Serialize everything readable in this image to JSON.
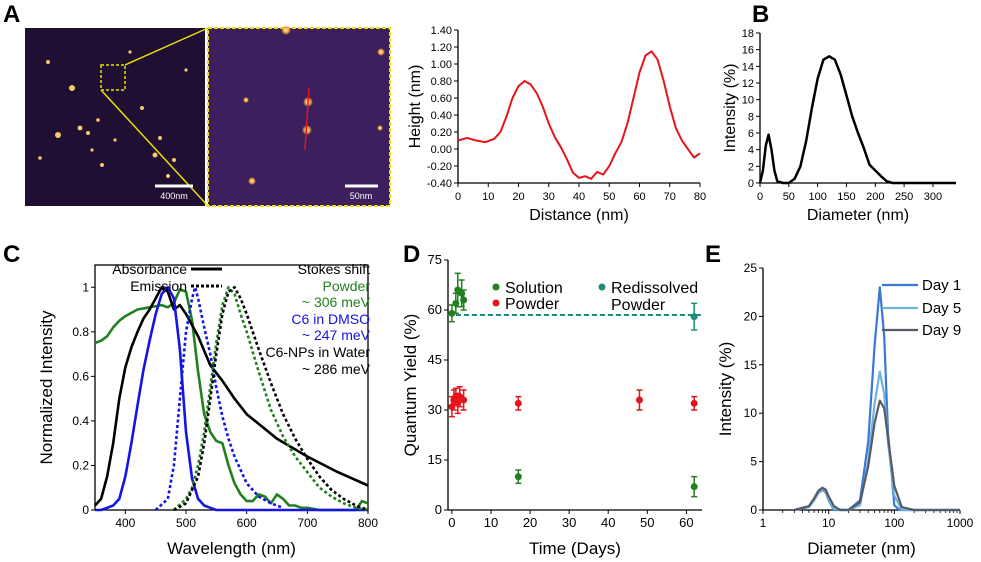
{
  "panels": {
    "A": {
      "letter": "A",
      "scale_bar_1": "400nm",
      "scale_bar_2": "50nm"
    },
    "B": {
      "letter": "B"
    },
    "C": {
      "letter": "C"
    },
    "D": {
      "letter": "D"
    },
    "E": {
      "letter": "E"
    }
  },
  "colors": {
    "red": "#e8141b",
    "black": "#000000",
    "green": "#22801f",
    "blue": "#1414e6",
    "teal": "#1e8c7a",
    "day1": "#3a78d8",
    "day5": "#6fb3d8",
    "day9": "#555a66",
    "spot": "#f7c96a",
    "afm_dark": "#1e0f33",
    "afm_zoom": "#3c1f5c",
    "highlight": "#e8e000"
  },
  "chart_data": [
    {
      "id": "A_profile",
      "type": "line",
      "title": "",
      "xlabel": "Distance (nm)",
      "ylabel": "Height (nm)",
      "xlim": [
        0,
        80
      ],
      "ylim": [
        -0.4,
        1.4
      ],
      "xticks": [
        0,
        10,
        20,
        30,
        40,
        50,
        60,
        70,
        80
      ],
      "yticks": [
        -0.4,
        -0.2,
        0.0,
        0.2,
        0.4,
        0.6,
        0.8,
        1.0,
        1.2,
        1.4
      ],
      "ytick_labels": [
        "-0.40",
        "-0.20",
        "0.00",
        "0.20",
        "0.40",
        "0.60",
        "0.80",
        "1.00",
        "1.20",
        "1.40"
      ],
      "series": [
        {
          "color": "red",
          "x": [
            0,
            3,
            6,
            9,
            12,
            14,
            16,
            18,
            20,
            22,
            24,
            26,
            28,
            30,
            32,
            34,
            36,
            38,
            40,
            42,
            44,
            46,
            48,
            50,
            52,
            54,
            56,
            58,
            60,
            62,
            64,
            66,
            68,
            70,
            72,
            74,
            76,
            78,
            80
          ],
          "y": [
            0.1,
            0.13,
            0.1,
            0.08,
            0.12,
            0.2,
            0.38,
            0.6,
            0.74,
            0.8,
            0.76,
            0.66,
            0.5,
            0.3,
            0.14,
            0.02,
            -0.12,
            -0.28,
            -0.34,
            -0.32,
            -0.35,
            -0.27,
            -0.3,
            -0.2,
            -0.05,
            0.08,
            0.3,
            0.6,
            0.9,
            1.1,
            1.15,
            1.05,
            0.8,
            0.5,
            0.25,
            0.1,
            0.0,
            -0.1,
            -0.05
          ]
        }
      ]
    },
    {
      "id": "B",
      "type": "line",
      "title": "",
      "xlabel": "Diameter (nm)",
      "ylabel": "Intensity (%)",
      "xlim": [
        0,
        340
      ],
      "ylim": [
        0,
        18
      ],
      "xticks": [
        0,
        50,
        100,
        150,
        200,
        250,
        300
      ],
      "yticks": [
        0,
        2,
        4,
        6,
        8,
        10,
        12,
        14,
        16,
        18
      ],
      "series": [
        {
          "color": "black",
          "x": [
            0,
            5,
            10,
            15,
            20,
            25,
            30,
            40,
            50,
            60,
            70,
            80,
            90,
            100,
            110,
            120,
            130,
            140,
            150,
            160,
            170,
            180,
            190,
            200,
            210,
            220,
            230,
            240,
            340
          ],
          "y": [
            0,
            1.5,
            4.5,
            5.8,
            4,
            1.5,
            0.2,
            0,
            0,
            0.5,
            2,
            5,
            9,
            12.5,
            14.8,
            15.2,
            14.8,
            13,
            10.5,
            8,
            6,
            4.2,
            2.2,
            1.5,
            0.8,
            0.2,
            0,
            0,
            0
          ]
        }
      ]
    },
    {
      "id": "C",
      "type": "line",
      "title": "",
      "xlabel": "Wavelength (nm)",
      "ylabel": "Normalized Intensity",
      "xlim": [
        350,
        800
      ],
      "ylim": [
        0,
        1.1
      ],
      "xticks": [
        400,
        500,
        600,
        700,
        800
      ],
      "yticks": [
        0.0,
        0.2,
        0.4,
        0.6,
        0.8,
        1.0
      ],
      "legend": [
        {
          "label": "Absorbance",
          "style": "solid"
        },
        {
          "label": "Emission",
          "style": "dotted"
        }
      ],
      "annotations": [
        {
          "text": "Stokes shift",
          "color": "black"
        },
        {
          "text": "Powder",
          "color": "green"
        },
        {
          "text": "~ 306 meV",
          "color": "green"
        },
        {
          "text": "C6 in DMSO",
          "color": "blue"
        },
        {
          "text": "~ 247 meV",
          "color": "blue"
        },
        {
          "text": "C6-NPs in Water",
          "color": "black"
        },
        {
          "text": "~ 286 meV",
          "color": "black"
        }
      ],
      "series": [
        {
          "color": "green",
          "style": "solid",
          "x": [
            350,
            360,
            370,
            380,
            390,
            400,
            420,
            440,
            460,
            470,
            480,
            490,
            500,
            510,
            520,
            530,
            540,
            550,
            560,
            570,
            580,
            590,
            600,
            610,
            620,
            630,
            640,
            650,
            660,
            670,
            680,
            690,
            700,
            720,
            740,
            760,
            780,
            790,
            800
          ],
          "y": [
            0.75,
            0.76,
            0.78,
            0.82,
            0.85,
            0.87,
            0.9,
            0.91,
            0.92,
            0.91,
            0.93,
            0.99,
            0.98,
            0.85,
            0.62,
            0.43,
            0.35,
            0.31,
            0.3,
            0.2,
            0.12,
            0.07,
            0.04,
            0.04,
            0.07,
            0.06,
            0.03,
            0.07,
            0.05,
            0.02,
            0.02,
            0.01,
            0.01,
            0.0,
            0.0,
            0.0,
            0.0,
            0.04,
            0.03
          ]
        },
        {
          "color": "black",
          "style": "solid",
          "x": [
            350,
            360,
            370,
            380,
            390,
            400,
            410,
            420,
            430,
            440,
            450,
            460,
            470,
            480,
            490,
            500,
            520,
            540,
            560,
            580,
            600,
            650,
            700,
            750,
            800
          ],
          "y": [
            0.02,
            0.05,
            0.15,
            0.3,
            0.5,
            0.64,
            0.73,
            0.8,
            0.86,
            0.9,
            0.95,
            1.0,
            0.98,
            0.9,
            0.92,
            0.88,
            0.78,
            0.65,
            0.58,
            0.5,
            0.43,
            0.32,
            0.24,
            0.17,
            0.11
          ]
        },
        {
          "color": "blue",
          "style": "solid",
          "x": [
            350,
            360,
            370,
            380,
            390,
            400,
            410,
            420,
            430,
            440,
            450,
            460,
            470,
            480,
            490,
            500,
            510,
            520,
            530,
            540,
            550,
            560,
            800
          ],
          "y": [
            0.0,
            0.0,
            0.01,
            0.02,
            0.05,
            0.15,
            0.3,
            0.47,
            0.63,
            0.76,
            0.88,
            0.97,
            1.0,
            0.95,
            0.72,
            0.35,
            0.14,
            0.05,
            0.02,
            0.01,
            0.0,
            0.0,
            0.0
          ]
        },
        {
          "color": "blue",
          "style": "dotted",
          "x": [
            450,
            470,
            480,
            490,
            500,
            510,
            515,
            520,
            530,
            540,
            550,
            560,
            570,
            580,
            590,
            600,
            620,
            640,
            660
          ],
          "y": [
            0.0,
            0.05,
            0.2,
            0.5,
            0.8,
            0.95,
            1.0,
            0.95,
            0.82,
            0.7,
            0.55,
            0.42,
            0.32,
            0.24,
            0.18,
            0.12,
            0.06,
            0.03,
            0.01
          ]
        },
        {
          "color": "green",
          "style": "dotted",
          "x": [
            480,
            500,
            510,
            520,
            530,
            540,
            550,
            560,
            570,
            580,
            590,
            600,
            620,
            640,
            660,
            680,
            700,
            720,
            740,
            760,
            780,
            800
          ],
          "y": [
            0.0,
            0.05,
            0.1,
            0.2,
            0.35,
            0.55,
            0.75,
            0.92,
            1.0,
            0.97,
            0.88,
            0.8,
            0.62,
            0.45,
            0.33,
            0.24,
            0.17,
            0.1,
            0.06,
            0.03,
            0.01,
            0.0
          ]
        },
        {
          "color": "black",
          "style": "dotted",
          "x": [
            480,
            500,
            520,
            530,
            540,
            550,
            560,
            570,
            580,
            590,
            600,
            620,
            640,
            660,
            680,
            700,
            720,
            740,
            760,
            780,
            800
          ],
          "y": [
            0.0,
            0.03,
            0.15,
            0.3,
            0.5,
            0.7,
            0.88,
            0.98,
            1.0,
            0.95,
            0.88,
            0.72,
            0.57,
            0.43,
            0.32,
            0.23,
            0.15,
            0.09,
            0.05,
            0.02,
            0.0
          ]
        }
      ]
    },
    {
      "id": "D",
      "type": "scatter",
      "title": "",
      "xlabel": "Time (Days)",
      "ylabel": "Quantum Yield (%)",
      "xlim": [
        -1,
        64
      ],
      "ylim": [
        0,
        75
      ],
      "xticks": [
        0,
        10,
        20,
        30,
        40,
        50,
        60
      ],
      "yticks": [
        0,
        15,
        30,
        45,
        60,
        75
      ],
      "reference_line": {
        "y": 58.5,
        "style": "dashed",
        "color": "teal"
      },
      "legend": [
        {
          "label": "Solution",
          "color": "green"
        },
        {
          "label": "Powder",
          "color": "red"
        },
        {
          "label": "Redissolved",
          "label2": "Powder",
          "color": "teal"
        }
      ],
      "series": [
        {
          "name": "Solution",
          "color": "green",
          "points": [
            [
              0,
              59,
              2.5
            ],
            [
              1,
              62,
              3
            ],
            [
              1.5,
              66,
              5
            ],
            [
              2.5,
              65,
              4
            ],
            [
              3,
              63,
              3
            ],
            [
              17,
              10,
              2
            ],
            [
              62,
              7,
              3
            ]
          ]
        },
        {
          "name": "Powder",
          "color": "red",
          "points": [
            [
              0,
              31,
              3
            ],
            [
              0.5,
              33,
              3
            ],
            [
              1,
              34,
              2.5
            ],
            [
              1.5,
              32,
              3
            ],
            [
              2,
              34,
              3
            ],
            [
              3,
              33,
              3
            ],
            [
              17,
              32,
              2
            ],
            [
              48,
              33,
              3
            ],
            [
              62,
              32,
              2
            ]
          ]
        },
        {
          "name": "Redissolved Powder",
          "color": "teal",
          "points": [
            [
              62,
              58,
              4
            ]
          ]
        }
      ]
    },
    {
      "id": "E",
      "type": "line",
      "title": "",
      "xlabel": "Diameter (nm)",
      "ylabel": "Intensity (%)",
      "xscale": "log",
      "xlim": [
        1,
        1000
      ],
      "ylim": [
        0,
        25
      ],
      "xticks": [
        1,
        10,
        100,
        1000
      ],
      "yticks": [
        0,
        5,
        10,
        15,
        20,
        25
      ],
      "series": [
        {
          "name": "Day 1",
          "color": "day1",
          "x": [
            3,
            5,
            6,
            7,
            8,
            9,
            10,
            12,
            20,
            30,
            40,
            50,
            60,
            70,
            80,
            100,
            120,
            200,
            1000
          ],
          "y": [
            0,
            0.3,
            1,
            1.8,
            2.1,
            1.8,
            1,
            0,
            0,
            1,
            7,
            17,
            23,
            18,
            8,
            0.5,
            0,
            0,
            0
          ]
        },
        {
          "name": "Day 5",
          "color": "day5",
          "x": [
            3,
            5,
            6,
            7,
            8,
            9,
            10,
            12,
            20,
            30,
            40,
            50,
            60,
            70,
            80,
            100,
            130,
            200,
            1000
          ],
          "y": [
            0,
            0.3,
            1,
            1.9,
            2.2,
            1.9,
            1.1,
            0.1,
            0,
            0.5,
            5,
            11,
            14.3,
            12,
            7,
            1.5,
            0,
            0,
            0
          ]
        },
        {
          "name": "Day 9",
          "color": "day9",
          "x": [
            3,
            5,
            6,
            7,
            8,
            9,
            10,
            12,
            15,
            20,
            30,
            40,
            50,
            60,
            70,
            80,
            100,
            130,
            200,
            1000
          ],
          "y": [
            0,
            0.4,
            1.2,
            2,
            2.3,
            2.1,
            1.4,
            0.4,
            0,
            0,
            0.8,
            4.5,
            9,
            11.3,
            10.5,
            7.5,
            2.5,
            0.3,
            0,
            0
          ]
        }
      ]
    }
  ]
}
